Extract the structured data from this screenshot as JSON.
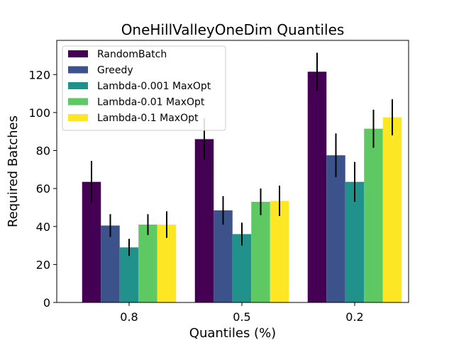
{
  "chart_data": {
    "type": "bar",
    "title": "OneHillValleyOneDim Quantiles",
    "xlabel": "Quantiles (%)",
    "ylabel": "Required Batches",
    "categories": [
      "0.8",
      "0.5",
      "0.2"
    ],
    "ylim": [
      0,
      138
    ],
    "yticks": [
      0,
      20,
      40,
      60,
      80,
      100,
      120
    ],
    "legend_position": "top-left",
    "series": [
      {
        "name": "RandomBatch",
        "color": "#440154",
        "values": [
          63.5,
          86,
          121.5
        ],
        "errors": [
          11,
          11,
          10
        ]
      },
      {
        "name": "Greedy",
        "color": "#3b528b",
        "values": [
          40.5,
          48.5,
          77.5
        ],
        "errors": [
          6,
          7.5,
          11.5
        ]
      },
      {
        "name": "Lambda-0.001 MaxOpt",
        "color": "#21918c",
        "values": [
          29,
          36,
          63.5
        ],
        "errors": [
          4.5,
          6,
          10.5
        ]
      },
      {
        "name": "Lambda-0.01 MaxOpt",
        "color": "#5ec962",
        "values": [
          41,
          53,
          91.5
        ],
        "errors": [
          5.5,
          7,
          10
        ]
      },
      {
        "name": "Lambda-0.1 MaxOpt",
        "color": "#fde725",
        "values": [
          41,
          53.5,
          97.5
        ],
        "errors": [
          7,
          8,
          9.5
        ]
      }
    ]
  }
}
